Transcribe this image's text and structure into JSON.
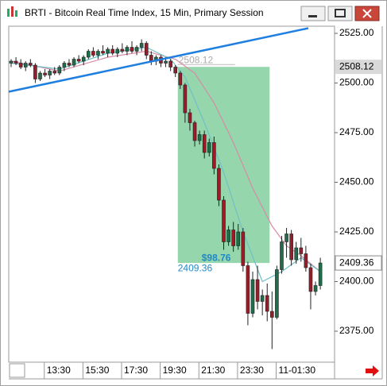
{
  "window": {
    "title": "BRTI - Bitcoin Real Time Index, 15 Min, Primary Session"
  },
  "chart_data": {
    "type": "candlestick",
    "categories": [
      null,
      null,
      null,
      null,
      null,
      null,
      null,
      null,
      null,
      "13:30",
      null,
      null,
      null,
      null,
      null,
      null,
      null,
      "15:30",
      null,
      null,
      null,
      null,
      null,
      null,
      null,
      "17:30",
      null,
      null,
      null,
      null,
      null,
      null,
      null,
      "19:30",
      null,
      null,
      null,
      null,
      null,
      null,
      null,
      "21:30",
      null,
      null,
      null,
      null,
      null,
      null,
      null,
      "23:30",
      null,
      null,
      null,
      null,
      null,
      null,
      null,
      "11-01:30",
      null,
      null,
      null,
      null,
      null,
      null,
      null
    ],
    "open": [
      2510,
      2511,
      2510,
      2508,
      2510,
      2509,
      2502,
      2505,
      2504,
      2506,
      2505,
      2508,
      2510,
      2509,
      2512,
      2511,
      2513,
      2516,
      2514,
      2516,
      2515,
      2517,
      2515,
      2517,
      2516,
      2518,
      2516,
      2518,
      2520,
      2514,
      2511,
      2513,
      2510,
      2511,
      2508,
      2505,
      2499,
      2485,
      2480,
      2471,
      2474,
      2465,
      2470,
      2457,
      2441,
      2420,
      2426,
      2418,
      2425,
      2408,
      2384,
      2401,
      2390,
      2393,
      2385,
      2382,
      2406,
      2420,
      2424,
      2411,
      2417,
      2414,
      2407,
      2395,
      2398
    ],
    "high": [
      2512,
      2513,
      2512,
      2511,
      2512,
      2510,
      2506,
      2507,
      2507,
      2508,
      2509,
      2511,
      2512,
      2513,
      2514,
      2514,
      2517,
      2518,
      2517,
      2519,
      2518,
      2519,
      2518,
      2520,
      2519,
      2521,
      2519,
      2522,
      2521,
      2516,
      2514,
      2514,
      2513,
      2512,
      2509,
      2506,
      2500,
      2487,
      2481,
      2476,
      2476,
      2472,
      2473,
      2459,
      2443,
      2428,
      2430,
      2429,
      2427,
      2410,
      2405,
      2408,
      2396,
      2399,
      2395,
      2408,
      2423,
      2427,
      2426,
      2420,
      2422,
      2418,
      2409,
      2400,
      2412
    ],
    "low": [
      2508,
      2509,
      2507,
      2506,
      2508,
      2500,
      2501,
      2503,
      2502,
      2504,
      2504,
      2506,
      2508,
      2508,
      2510,
      2509,
      2512,
      2513,
      2512,
      2514,
      2513,
      2514,
      2513,
      2515,
      2514,
      2515,
      2514,
      2516,
      2512,
      2509,
      2509,
      2508,
      2508,
      2506,
      2503,
      2497,
      2480,
      2476,
      2468,
      2469,
      2462,
      2463,
      2454,
      2438,
      2416,
      2418,
      2415,
      2416,
      2405,
      2378,
      2382,
      2386,
      2383,
      2380,
      2366,
      2381,
      2404,
      2412,
      2408,
      2409,
      2410,
      2405,
      2386,
      2393,
      2396
    ],
    "close": [
      2511,
      2510,
      2508,
      2510,
      2509,
      2502,
      2505,
      2504,
      2506,
      2505,
      2508,
      2510,
      2509,
      2512,
      2511,
      2513,
      2516,
      2514,
      2516,
      2515,
      2517,
      2515,
      2517,
      2516,
      2518,
      2516,
      2518,
      2520,
      2514,
      2511,
      2513,
      2510,
      2511,
      2508,
      2505,
      2499,
      2485,
      2480,
      2471,
      2474,
      2465,
      2470,
      2457,
      2441,
      2420,
      2426,
      2418,
      2425,
      2408,
      2384,
      2401,
      2390,
      2393,
      2385,
      2382,
      2406,
      2420,
      2424,
      2411,
      2417,
      2414,
      2407,
      2395,
      2398,
      2409.36
    ],
    "up_color": "#1f6e4a",
    "down_color": "#9c1b28",
    "ylim": [
      2359.4,
      2528.6
    ],
    "yticks": [
      {
        "value": 2525,
        "label": "2525.00"
      },
      {
        "value": 2500,
        "label": "2500.00"
      },
      {
        "value": 2475,
        "label": "2475.00"
      },
      {
        "value": 2450,
        "label": "2450.00"
      },
      {
        "value": 2425,
        "label": "2425.00"
      },
      {
        "value": 2400,
        "label": "2400.00"
      },
      {
        "value": 2375,
        "label": "2375.00"
      }
    ],
    "indicators": [
      {
        "color": "#d98aa6",
        "x": [
          0,
          10,
          20,
          28,
          34,
          38,
          42,
          46,
          50,
          54,
          57,
          60,
          64
        ],
        "values": [
          2511,
          2506,
          2513,
          2516,
          2512,
          2505,
          2490,
          2470,
          2447,
          2428,
          2418,
          2413,
          2405
        ]
      },
      {
        "color": "#6fc0c8",
        "x": [
          0,
          10,
          20,
          28,
          33,
          36,
          40,
          44,
          48,
          52,
          56,
          60,
          64
        ],
        "values": [
          2510,
          2507,
          2515,
          2518,
          2512,
          2503,
          2480,
          2455,
          2425,
          2400,
          2405,
          2412,
          2405
        ]
      }
    ],
    "trendline": {
      "color": "#1e7fe0",
      "x": [
        -0.5,
        61.5
      ],
      "values": [
        2495.6,
        2527.6
      ]
    },
    "measure": {
      "color": "#8fd4a8",
      "x": [
        34.5,
        53.5
      ],
      "top": {
        "value": 2508.12,
        "label": "2508.12"
      },
      "bottom": {
        "value": 2409.36,
        "label": "2409.36"
      },
      "difference": {
        "value": 98.76,
        "label": "$98.76"
      }
    }
  }
}
